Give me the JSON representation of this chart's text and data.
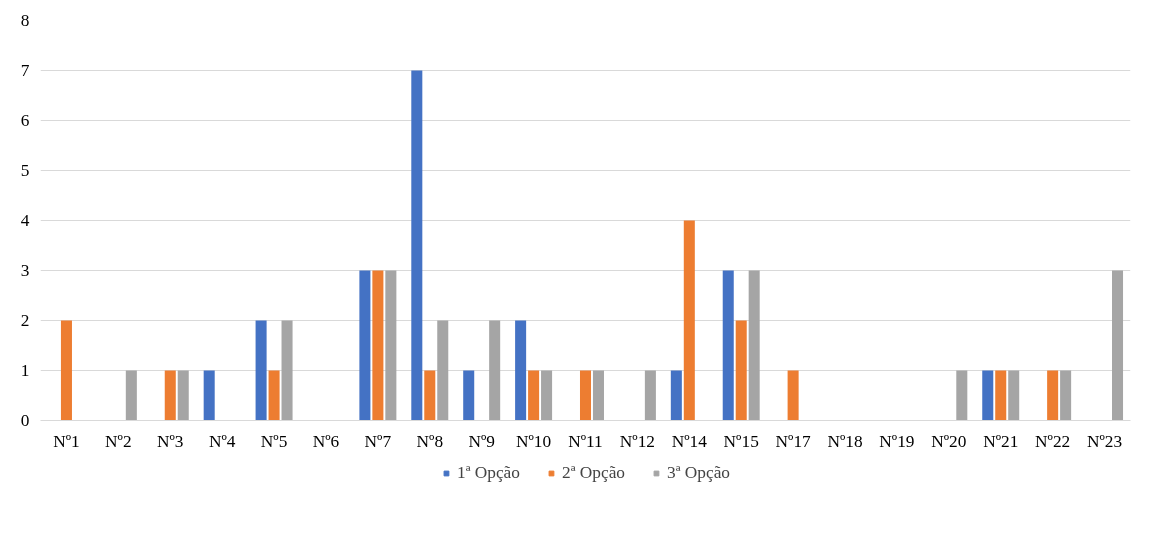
{
  "chart_data": {
    "type": "bar",
    "categories": [
      "Nº1",
      "Nº2",
      "Nº3",
      "Nº4",
      "Nº5",
      "Nº6",
      "Nº7",
      "Nº8",
      "Nº9",
      "Nº10",
      "Nº11",
      "Nº12",
      "Nº14",
      "Nº15",
      "Nº17",
      "Nº18",
      "Nº19",
      "Nº20",
      "Nº21",
      "Nº22",
      "Nº23"
    ],
    "series": [
      {
        "name": "1ª Opção",
        "color": "#4472c4",
        "values": [
          0,
          0,
          0,
          1,
          2,
          0,
          3,
          7,
          1,
          2,
          0,
          0,
          1,
          3,
          0,
          0,
          0,
          0,
          1,
          0,
          0
        ]
      },
      {
        "name": "2ª Opção",
        "color": "#ed7d31",
        "values": [
          2,
          0,
          1,
          0,
          1,
          0,
          3,
          1,
          0,
          1,
          1,
          0,
          4,
          2,
          1,
          0,
          0,
          0,
          1,
          1,
          0
        ]
      },
      {
        "name": "3ª Opção",
        "color": "#a5a5a5",
        "values": [
          0,
          1,
          1,
          0,
          2,
          0,
          3,
          2,
          2,
          1,
          1,
          1,
          0,
          3,
          0,
          0,
          0,
          1,
          1,
          1,
          3
        ]
      }
    ],
    "ylim": [
      0,
      8
    ],
    "yticks": [
      0,
      1,
      2,
      3,
      4,
      5,
      6,
      7,
      8
    ],
    "grid": "y",
    "legend": "bottom"
  }
}
